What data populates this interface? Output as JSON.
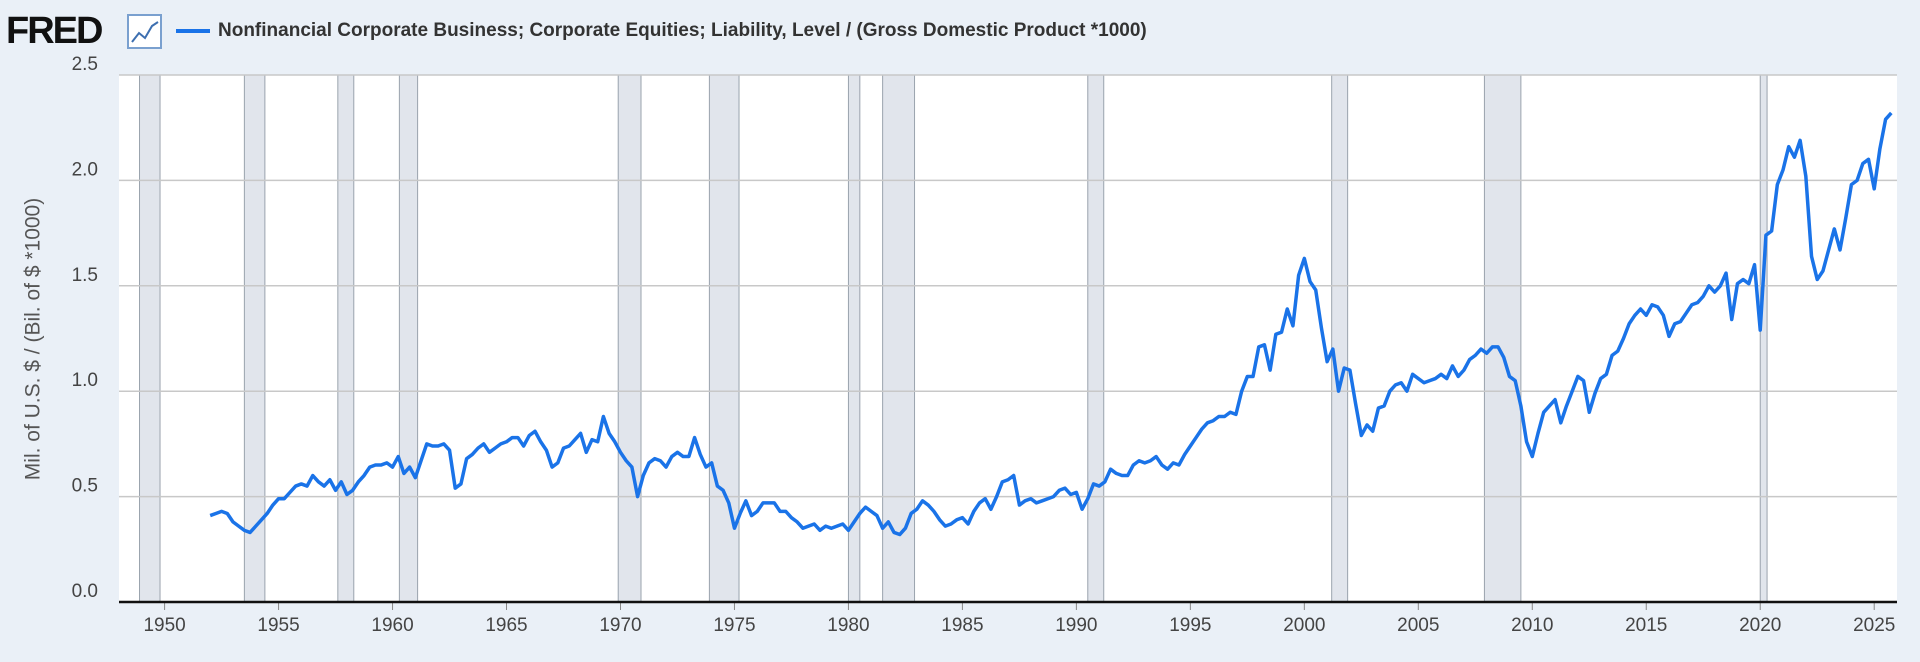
{
  "logo": "FRED",
  "chart_data": {
    "type": "line",
    "y_label": "Mil. of U.S. $ / (Bil. of $ *1000)",
    "xlim": [
      1948,
      2026
    ],
    "xticks": [
      1950,
      1955,
      1960,
      1965,
      1970,
      1975,
      1980,
      1985,
      1990,
      1995,
      2000,
      2005,
      2010,
      2015,
      2020,
      2025
    ],
    "ylim": [
      0,
      2.5
    ],
    "yticks": [
      {
        "value": 0,
        "label": "0.0"
      },
      0.5,
      {
        "value": 1,
        "label": "1.0"
      },
      1.5,
      {
        "value": 2,
        "label": "2.0"
      },
      2.5
    ],
    "grid": true,
    "recession_color": "#e1e5ec",
    "recessions": [
      [
        1948.9,
        1949.8
      ],
      [
        1953.5,
        1954.4
      ],
      [
        1957.6,
        1958.3
      ],
      [
        1960.3,
        1961.1
      ],
      [
        1969.9,
        1970.9
      ],
      [
        1973.9,
        1975.2
      ],
      [
        1980.0,
        1980.5
      ],
      [
        1981.5,
        1982.9
      ],
      [
        1990.5,
        1991.2
      ],
      [
        2001.2,
        2001.9
      ],
      [
        2007.9,
        2009.5
      ],
      [
        2020.0,
        2020.3
      ]
    ],
    "series": [
      {
        "name": "Nonfinancial Corporate Business; Corporate Equities; Liability, Level / (Gross Domestic Product *1000)",
        "color": "#1a73e8",
        "x": [
          1952,
          1952.25,
          1952.5,
          1952.75,
          1953,
          1953.25,
          1953.5,
          1953.75,
          1954,
          1954.25,
          1954.5,
          1954.75,
          1955,
          1955.25,
          1955.5,
          1955.75,
          1956,
          1956.25,
          1956.5,
          1956.75,
          1957,
          1957.25,
          1957.5,
          1957.75,
          1958,
          1958.25,
          1958.5,
          1958.75,
          1959,
          1959.25,
          1959.5,
          1959.75,
          1960,
          1960.25,
          1960.5,
          1960.75,
          1961,
          1961.25,
          1961.5,
          1961.75,
          1962,
          1962.25,
          1962.5,
          1962.75,
          1963,
          1963.25,
          1963.5,
          1963.75,
          1964,
          1964.25,
          1964.5,
          1964.75,
          1965,
          1965.25,
          1965.5,
          1965.75,
          1966,
          1966.25,
          1966.5,
          1966.75,
          1967,
          1967.25,
          1967.5,
          1967.75,
          1968,
          1968.25,
          1968.5,
          1968.75,
          1969,
          1969.25,
          1969.5,
          1969.75,
          1970,
          1970.25,
          1970.5,
          1970.75,
          1971,
          1971.25,
          1971.5,
          1971.75,
          1972,
          1972.25,
          1972.5,
          1972.75,
          1973,
          1973.25,
          1973.5,
          1973.75,
          1974,
          1974.25,
          1974.5,
          1974.75,
          1975,
          1975.25,
          1975.5,
          1975.75,
          1976,
          1976.25,
          1976.5,
          1976.75,
          1977,
          1977.25,
          1977.5,
          1977.75,
          1978,
          1978.25,
          1978.5,
          1978.75,
          1979,
          1979.25,
          1979.5,
          1979.75,
          1980,
          1980.25,
          1980.5,
          1980.75,
          1981,
          1981.25,
          1981.5,
          1981.75,
          1982,
          1982.25,
          1982.5,
          1982.75,
          1983,
          1983.25,
          1983.5,
          1983.75,
          1984,
          1984.25,
          1984.5,
          1984.75,
          1985,
          1985.25,
          1985.5,
          1985.75,
          1986,
          1986.25,
          1986.5,
          1986.75,
          1987,
          1987.25,
          1987.5,
          1987.75,
          1988,
          1988.25,
          1988.5,
          1988.75,
          1989,
          1989.25,
          1989.5,
          1989.75,
          1990,
          1990.25,
          1990.5,
          1990.75,
          1991,
          1991.25,
          1991.5,
          1991.75,
          1992,
          1992.25,
          1992.5,
          1992.75,
          1993,
          1993.25,
          1993.5,
          1993.75,
          1994,
          1994.25,
          1994.5,
          1994.75,
          1995,
          1995.25,
          1995.5,
          1995.75,
          1996,
          1996.25,
          1996.5,
          1996.75,
          1997,
          1997.25,
          1997.5,
          1997.75,
          1998,
          1998.25,
          1998.5,
          1998.75,
          1999,
          1999.25,
          1999.5,
          1999.75,
          2000,
          2000.25,
          2000.5,
          2000.75,
          2001,
          2001.25,
          2001.5,
          2001.75,
          2002,
          2002.25,
          2002.5,
          2002.75,
          2003,
          2003.25,
          2003.5,
          2003.75,
          2004,
          2004.25,
          2004.5,
          2004.75,
          2005,
          2005.25,
          2005.5,
          2005.75,
          2006,
          2006.25,
          2006.5,
          2006.75,
          2007,
          2007.25,
          2007.5,
          2007.75,
          2008,
          2008.25,
          2008.5,
          2008.75,
          2009,
          2009.25,
          2009.5,
          2009.75,
          2010,
          2010.25,
          2010.5,
          2010.75,
          2011,
          2011.25,
          2011.5,
          2011.75,
          2012,
          2012.25,
          2012.5,
          2012.75,
          2013,
          2013.25,
          2013.5,
          2013.75,
          2014,
          2014.25,
          2014.5,
          2014.75,
          2015,
          2015.25,
          2015.5,
          2015.75,
          2016,
          2016.25,
          2016.5,
          2016.75,
          2017,
          2017.25,
          2017.5,
          2017.75,
          2018,
          2018.25,
          2018.5,
          2018.75,
          2019,
          2019.25,
          2019.5,
          2019.75,
          2020,
          2020.25,
          2020.5,
          2020.75,
          2021,
          2021.25,
          2021.5,
          2021.75,
          2022,
          2022.25,
          2022.5,
          2022.75,
          2023,
          2023.25,
          2023.5,
          2023.75,
          2024,
          2024.25,
          2024.5,
          2024.75,
          2025,
          2025.25,
          2025.5,
          2025.75
        ],
        "values": [
          0.41,
          0.42,
          0.43,
          0.42,
          0.38,
          0.36,
          0.34,
          0.33,
          0.36,
          0.39,
          0.42,
          0.46,
          0.49,
          0.49,
          0.52,
          0.55,
          0.56,
          0.55,
          0.6,
          0.57,
          0.55,
          0.58,
          0.53,
          0.57,
          0.51,
          0.53,
          0.57,
          0.6,
          0.64,
          0.65,
          0.65,
          0.66,
          0.64,
          0.69,
          0.61,
          0.64,
          0.59,
          0.67,
          0.75,
          0.74,
          0.74,
          0.75,
          0.72,
          0.54,
          0.56,
          0.68,
          0.7,
          0.73,
          0.75,
          0.71,
          0.73,
          0.75,
          0.76,
          0.78,
          0.78,
          0.74,
          0.79,
          0.81,
          0.76,
          0.72,
          0.64,
          0.66,
          0.73,
          0.74,
          0.77,
          0.8,
          0.71,
          0.77,
          0.76,
          0.88,
          0.8,
          0.76,
          0.71,
          0.67,
          0.64,
          0.5,
          0.6,
          0.66,
          0.68,
          0.67,
          0.64,
          0.69,
          0.71,
          0.69,
          0.69,
          0.78,
          0.7,
          0.64,
          0.66,
          0.55,
          0.53,
          0.47,
          0.35,
          0.42,
          0.48,
          0.41,
          0.43,
          0.47,
          0.47,
          0.47,
          0.43,
          0.43,
          0.4,
          0.38,
          0.35,
          0.36,
          0.37,
          0.34,
          0.36,
          0.35,
          0.36,
          0.37,
          0.34,
          0.38,
          0.42,
          0.45,
          0.43,
          0.41,
          0.35,
          0.38,
          0.33,
          0.32,
          0.35,
          0.42,
          0.44,
          0.48,
          0.46,
          0.43,
          0.39,
          0.36,
          0.37,
          0.39,
          0.4,
          0.37,
          0.43,
          0.47,
          0.49,
          0.44,
          0.5,
          0.57,
          0.58,
          0.6,
          0.46,
          0.48,
          0.49,
          0.47,
          0.48,
          0.49,
          0.5,
          0.53,
          0.54,
          0.51,
          0.52,
          0.44,
          0.49,
          0.56,
          0.55,
          0.57,
          0.63,
          0.61,
          0.6,
          0.6,
          0.65,
          0.67,
          0.66,
          0.67,
          0.69,
          0.65,
          0.63,
          0.66,
          0.65,
          0.7,
          0.74,
          0.78,
          0.82,
          0.85,
          0.86,
          0.88,
          0.88,
          0.9,
          0.89,
          1.0,
          1.07,
          1.07,
          1.21,
          1.22,
          1.1,
          1.27,
          1.28,
          1.39,
          1.31,
          1.55,
          1.63,
          1.52,
          1.48,
          1.3,
          1.14,
          1.2,
          1.0,
          1.11,
          1.1,
          0.94,
          0.79,
          0.84,
          0.81,
          0.92,
          0.93,
          1.0,
          1.03,
          1.04,
          1.0,
          1.08,
          1.06,
          1.04,
          1.05,
          1.06,
          1.08,
          1.06,
          1.12,
          1.07,
          1.1,
          1.15,
          1.17,
          1.2,
          1.18,
          1.21,
          1.21,
          1.16,
          1.07,
          1.05,
          0.93,
          0.76,
          0.69,
          0.8,
          0.9,
          0.93,
          0.96,
          0.85,
          0.93,
          1.0,
          1.07,
          1.05,
          0.9,
          0.99,
          1.06,
          1.08,
          1.17,
          1.19,
          1.25,
          1.32,
          1.36,
          1.39,
          1.36,
          1.41,
          1.4,
          1.36,
          1.26,
          1.32,
          1.33,
          1.37,
          1.41,
          1.42,
          1.45,
          1.5,
          1.47,
          1.5,
          1.56,
          1.34,
          1.51,
          1.53,
          1.51,
          1.6,
          1.29,
          1.74,
          1.76,
          1.98,
          2.05,
          2.16,
          2.11,
          2.19,
          2.02,
          1.64,
          1.53,
          1.57,
          1.67,
          1.77,
          1.67,
          1.82,
          1.98,
          2.0,
          2.08,
          2.1,
          1.96,
          2.15,
          2.29,
          2.32
        ]
      }
    ]
  }
}
